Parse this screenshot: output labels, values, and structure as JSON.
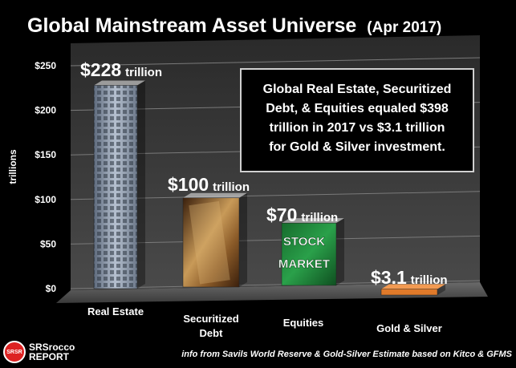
{
  "chart_data": {
    "type": "bar",
    "title": "Global Mainstream Asset Universe",
    "subtitle": "(Apr 2017)",
    "ylabel": "trillions",
    "ylim": [
      0,
      250
    ],
    "yticks": [
      0,
      50,
      100,
      150,
      200,
      250
    ],
    "ytick_labels": [
      "$0",
      "$50",
      "$100",
      "$150",
      "$200",
      "$250"
    ],
    "grid": true,
    "categories": [
      "Real Estate",
      "Securitized Debt",
      "Equities",
      "Gold & Silver"
    ],
    "category_lines": [
      [
        "Real Estate"
      ],
      [
        "Securitized",
        "Debt"
      ],
      [
        "Equities"
      ],
      [
        "Gold & Silver"
      ]
    ],
    "values": [
      228,
      100,
      70,
      3.1
    ],
    "value_labels": [
      {
        "amount": "$228",
        "unit": "trillion"
      },
      {
        "amount": "$100",
        "unit": "trillion"
      },
      {
        "amount": "$70",
        "unit": "trillion"
      },
      {
        "amount": "$3.1",
        "unit": "trillion"
      }
    ],
    "bar_colors": [
      "#8a96a8",
      "#a5713a",
      "#1f8a3a",
      "#e07a2a"
    ],
    "annotation_lines": [
      "Global Real Estate, Securitized",
      "Debt, & Equities equaled $398",
      "trillion in 2017 vs $3.1 trillion",
      "for Gold & Silver investment."
    ],
    "equities_box_text": [
      "STOCK",
      "MARKET"
    ]
  },
  "source_note": "info from Savils World Reserve & Gold-Silver Estimate based on Kitco & GFMS",
  "logo": {
    "mark": "SRSR",
    "line1": "SRSrocco",
    "line2": "REPORT"
  }
}
